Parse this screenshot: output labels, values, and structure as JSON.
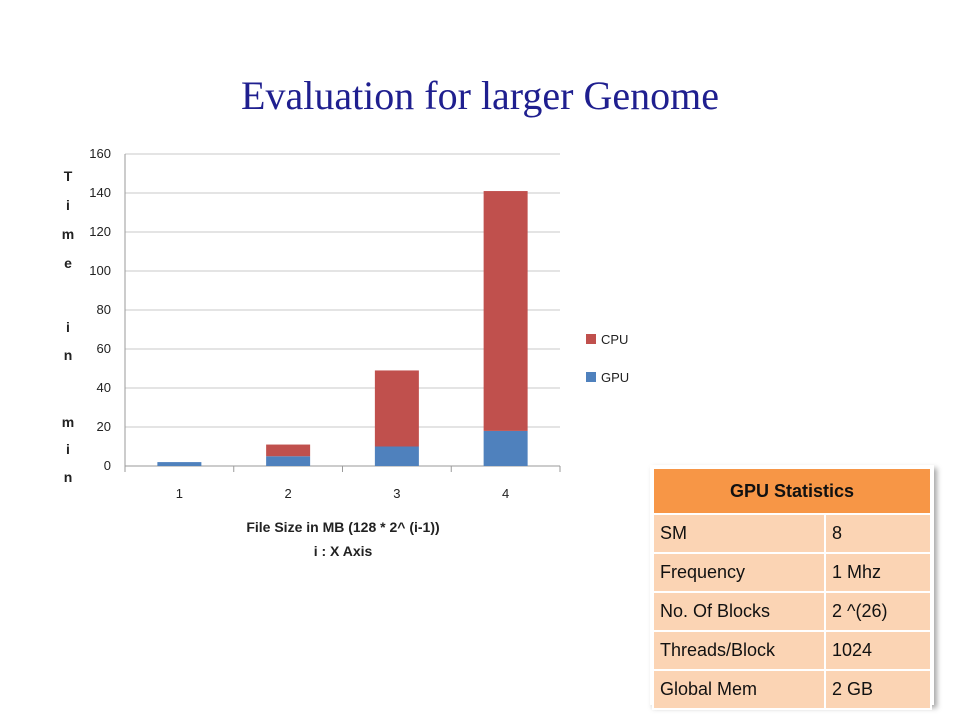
{
  "slide": {
    "title": "Evaluation for larger Genome"
  },
  "chart_data": {
    "type": "bar",
    "stacked": true,
    "categories": [
      "1",
      "2",
      "3",
      "4"
    ],
    "series": [
      {
        "name": "GPU",
        "values": [
          2,
          5,
          10,
          18
        ],
        "color": "#4f81bd"
      },
      {
        "name": "CPU",
        "values": [
          0,
          6,
          39,
          123
        ],
        "color": "#c0504d"
      }
    ],
    "xlabel": "File Size in MB (128 * 2^ (i-1))",
    "xlabel2": "i : X Axis",
    "ylabel_letters": [
      "T",
      "i",
      "m",
      "e",
      "i",
      "n",
      "m",
      "i",
      "n"
    ],
    "ylim": [
      0,
      160
    ],
    "yticks": [
      "0",
      "20",
      "40",
      "60",
      "80",
      "100",
      "120",
      "140",
      "160"
    ],
    "grid": true,
    "legend": "right"
  },
  "stats_table": {
    "header": "GPU Statistics",
    "rows": [
      {
        "key": "SM",
        "value": "8"
      },
      {
        "key": "Frequency",
        "value": "1 Mhz"
      },
      {
        "key": "No. Of Blocks",
        "value": "2 ^(26)"
      },
      {
        "key": "Threads/Block",
        "value": "1024"
      },
      {
        "key": "Global Mem",
        "value": "2 GB"
      }
    ]
  }
}
